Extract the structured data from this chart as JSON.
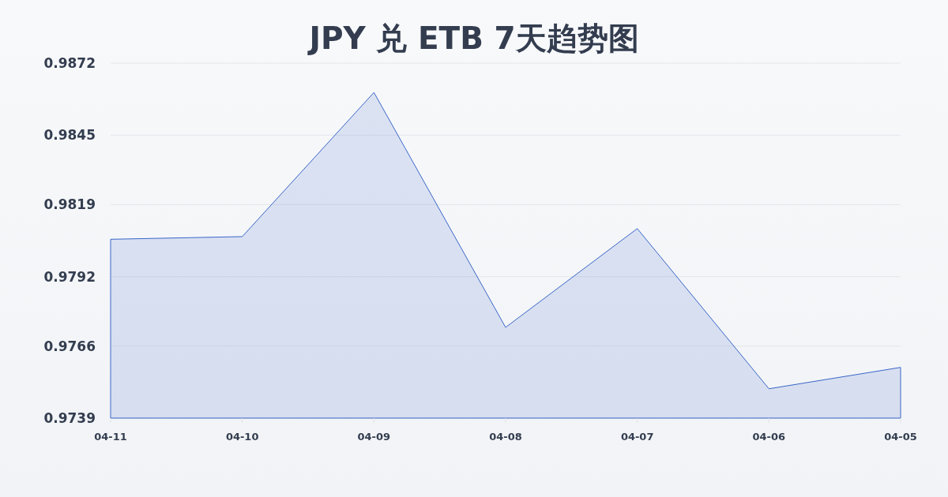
{
  "chart_data": {
    "type": "area",
    "title": "JPY 兑 ETB 7天趋势图",
    "categories": [
      "04-11",
      "04-10",
      "04-09",
      "04-08",
      "04-07",
      "04-06",
      "04-05"
    ],
    "series": [
      {
        "color": "#3a66c8",
        "values": [
          0.9806,
          0.9807,
          0.9861,
          0.9773,
          0.981,
          0.975,
          0.9758
        ]
      }
    ],
    "ylim": [
      0.9739,
      0.9872
    ],
    "yticks": [
      0.9739,
      0.9766,
      0.9792,
      0.9819,
      0.9845,
      0.9872
    ],
    "grid": "y"
  }
}
